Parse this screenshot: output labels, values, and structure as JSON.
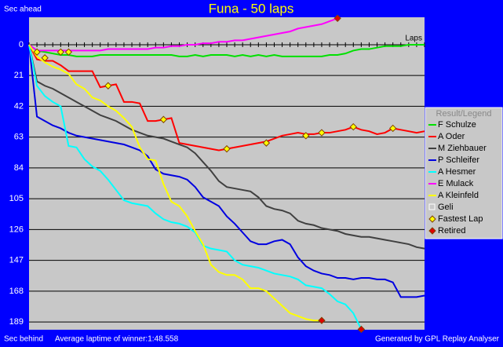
{
  "chart_data": {
    "type": "line",
    "title": "Funa - 50 laps",
    "y_top_label": "Sec ahead",
    "y_bottom_label": "Sec behind",
    "x_label": "Laps",
    "footer_left": "Average laptime of winner:1:48.558",
    "footer_right": "Generated by GPL Replay Analyser",
    "legend_title": "Result/Legend",
    "legend": "right",
    "grid": true,
    "y_inverted": true,
    "xlim": [
      0,
      50
    ],
    "ylim": [
      -18.7,
      194.3
    ],
    "xticks": [
      0,
      1,
      2,
      3,
      4,
      5,
      6,
      7,
      8,
      9,
      10,
      11,
      12,
      13,
      14,
      15,
      16,
      17,
      18,
      19,
      20,
      21,
      22,
      23,
      24,
      25,
      26,
      27,
      28,
      29,
      30,
      31,
      32,
      33,
      34,
      35,
      36,
      37,
      38,
      39,
      40,
      41,
      42,
      43,
      44,
      45,
      46,
      47,
      48,
      49,
      50
    ],
    "yticks": [
      0,
      21,
      42,
      63,
      84,
      105,
      126,
      147,
      168,
      189
    ],
    "x": [
      0,
      1,
      2,
      3,
      4,
      5,
      6,
      7,
      8,
      9,
      10,
      11,
      12,
      13,
      14,
      15,
      16,
      17,
      18,
      19,
      20,
      21,
      22,
      23,
      24,
      25,
      26,
      27,
      28,
      29,
      30,
      31,
      32,
      33,
      34,
      35,
      36,
      37,
      38,
      39,
      40,
      41,
      42,
      43,
      44,
      45,
      46,
      47,
      48,
      49,
      50
    ],
    "series": [
      {
        "name": "F Schulze",
        "color": "#00e000",
        "values": [
          0,
          4,
          5,
          6,
          7,
          7,
          8,
          8,
          8,
          7,
          7,
          7,
          7,
          7,
          7,
          7,
          7,
          7,
          7,
          8,
          8,
          7,
          8,
          7,
          7,
          7,
          8,
          7,
          8,
          7,
          8,
          7,
          8,
          8,
          8,
          8,
          8,
          8,
          7,
          7,
          6,
          4,
          3,
          3,
          2,
          1,
          1,
          1,
          0,
          0,
          0
        ]
      },
      {
        "name": "A Oder",
        "color": "#ff0000",
        "values": [
          0,
          10,
          11,
          11,
          14,
          18,
          18,
          18,
          18,
          29,
          28,
          27,
          39,
          39,
          40,
          52,
          52,
          51,
          50,
          67,
          68,
          69,
          70,
          71,
          72,
          71,
          70,
          69,
          68,
          67,
          66,
          64,
          62,
          61,
          60,
          61,
          61,
          60,
          60,
          59,
          58,
          56,
          58,
          59,
          61,
          60,
          57,
          58,
          59,
          60,
          59
        ]
      },
      {
        "name": "M Ziehbauer",
        "color": "#404040",
        "values": [
          0,
          25,
          28,
          30,
          33,
          36,
          39,
          42,
          45,
          48,
          50,
          52,
          55,
          58,
          60,
          62,
          63,
          64,
          66,
          68,
          70,
          74,
          80,
          86,
          93,
          97,
          98,
          99,
          100,
          104,
          110,
          112,
          113,
          115,
          120,
          122,
          123,
          125,
          126,
          127,
          129,
          130,
          131,
          131,
          132,
          133,
          134,
          135,
          136,
          138,
          139
        ]
      },
      {
        "name": "P Schleifer",
        "color": "#0000e0",
        "values": [
          0,
          49,
          52,
          55,
          57,
          60,
          62,
          63,
          64,
          65,
          66,
          67,
          68,
          70,
          72,
          76,
          85,
          88,
          89,
          90,
          92,
          97,
          104,
          107,
          110,
          117,
          122,
          128,
          134,
          136,
          136,
          134,
          133,
          136,
          145,
          151,
          154,
          156,
          157,
          159,
          159,
          160,
          159,
          159,
          160,
          160,
          162,
          172,
          172,
          172,
          171
        ]
      },
      {
        "name": "A Hesmer",
        "color": "#00ffff",
        "values": [
          0,
          28,
          35,
          39,
          42,
          69,
          70,
          78,
          83,
          86,
          92,
          99,
          106,
          108,
          109,
          110,
          115,
          119,
          121,
          122,
          124,
          128,
          137,
          139,
          140,
          141,
          147,
          150,
          151,
          152,
          154,
          156,
          157,
          158,
          160,
          164,
          165,
          166,
          170,
          175,
          177,
          183,
          194,
          null,
          null,
          null,
          null,
          null,
          null,
          null,
          null
        ]
      },
      {
        "name": "E Mulack",
        "color": "#ff00ff",
        "values": [
          0,
          4,
          4,
          4,
          4,
          4,
          4,
          4,
          4,
          4,
          3,
          3,
          3,
          3,
          3,
          3,
          2,
          2,
          1,
          1,
          0,
          0,
          -1,
          -1,
          -2,
          -2,
          -3,
          -3,
          -4,
          -5,
          -6,
          -7,
          -8,
          -9,
          -11,
          -12,
          -13,
          -14,
          -16,
          -18,
          null,
          null,
          null,
          null,
          null,
          null,
          null,
          null,
          null,
          null,
          null
        ]
      },
      {
        "name": "A Kleinfeld",
        "color": "#ffff00",
        "values": [
          0,
          8,
          12,
          15,
          17,
          20,
          27,
          30,
          36,
          38,
          42,
          45,
          50,
          56,
          70,
          78,
          79,
          95,
          107,
          110,
          117,
          127,
          136,
          150,
          155,
          157,
          157,
          160,
          166,
          166,
          168,
          173,
          178,
          183,
          185,
          187,
          188,
          188,
          null,
          null,
          null,
          null,
          null,
          null,
          null,
          null,
          null,
          null,
          null,
          null,
          null
        ]
      },
      {
        "name": "Geli",
        "color": "#ffffff",
        "values": [
          null,
          null,
          null,
          null,
          null,
          null,
          null,
          null,
          null,
          null,
          null,
          null,
          null,
          null,
          null,
          null,
          null,
          null,
          null,
          null,
          null,
          null,
          null,
          null,
          null,
          null,
          null,
          null,
          null,
          null,
          null,
          null,
          null,
          null,
          null,
          null,
          null,
          null,
          null,
          null,
          null,
          null,
          null,
          null,
          null,
          null,
          null,
          null,
          null,
          null,
          null
        ]
      }
    ],
    "markers": [
      {
        "name": "Fastest Lap",
        "color": "#ffff00",
        "x": [
          1,
          2,
          4,
          5,
          10,
          17,
          25,
          30,
          35,
          37,
          41,
          46
        ],
        "values": [
          5,
          9,
          5,
          5,
          28,
          51,
          71,
          67,
          62,
          60,
          56,
          57
        ]
      },
      {
        "name": "Retired",
        "color": "#e00000",
        "x": [
          39,
          37,
          42
        ],
        "values": [
          -18,
          188,
          194
        ]
      }
    ]
  }
}
